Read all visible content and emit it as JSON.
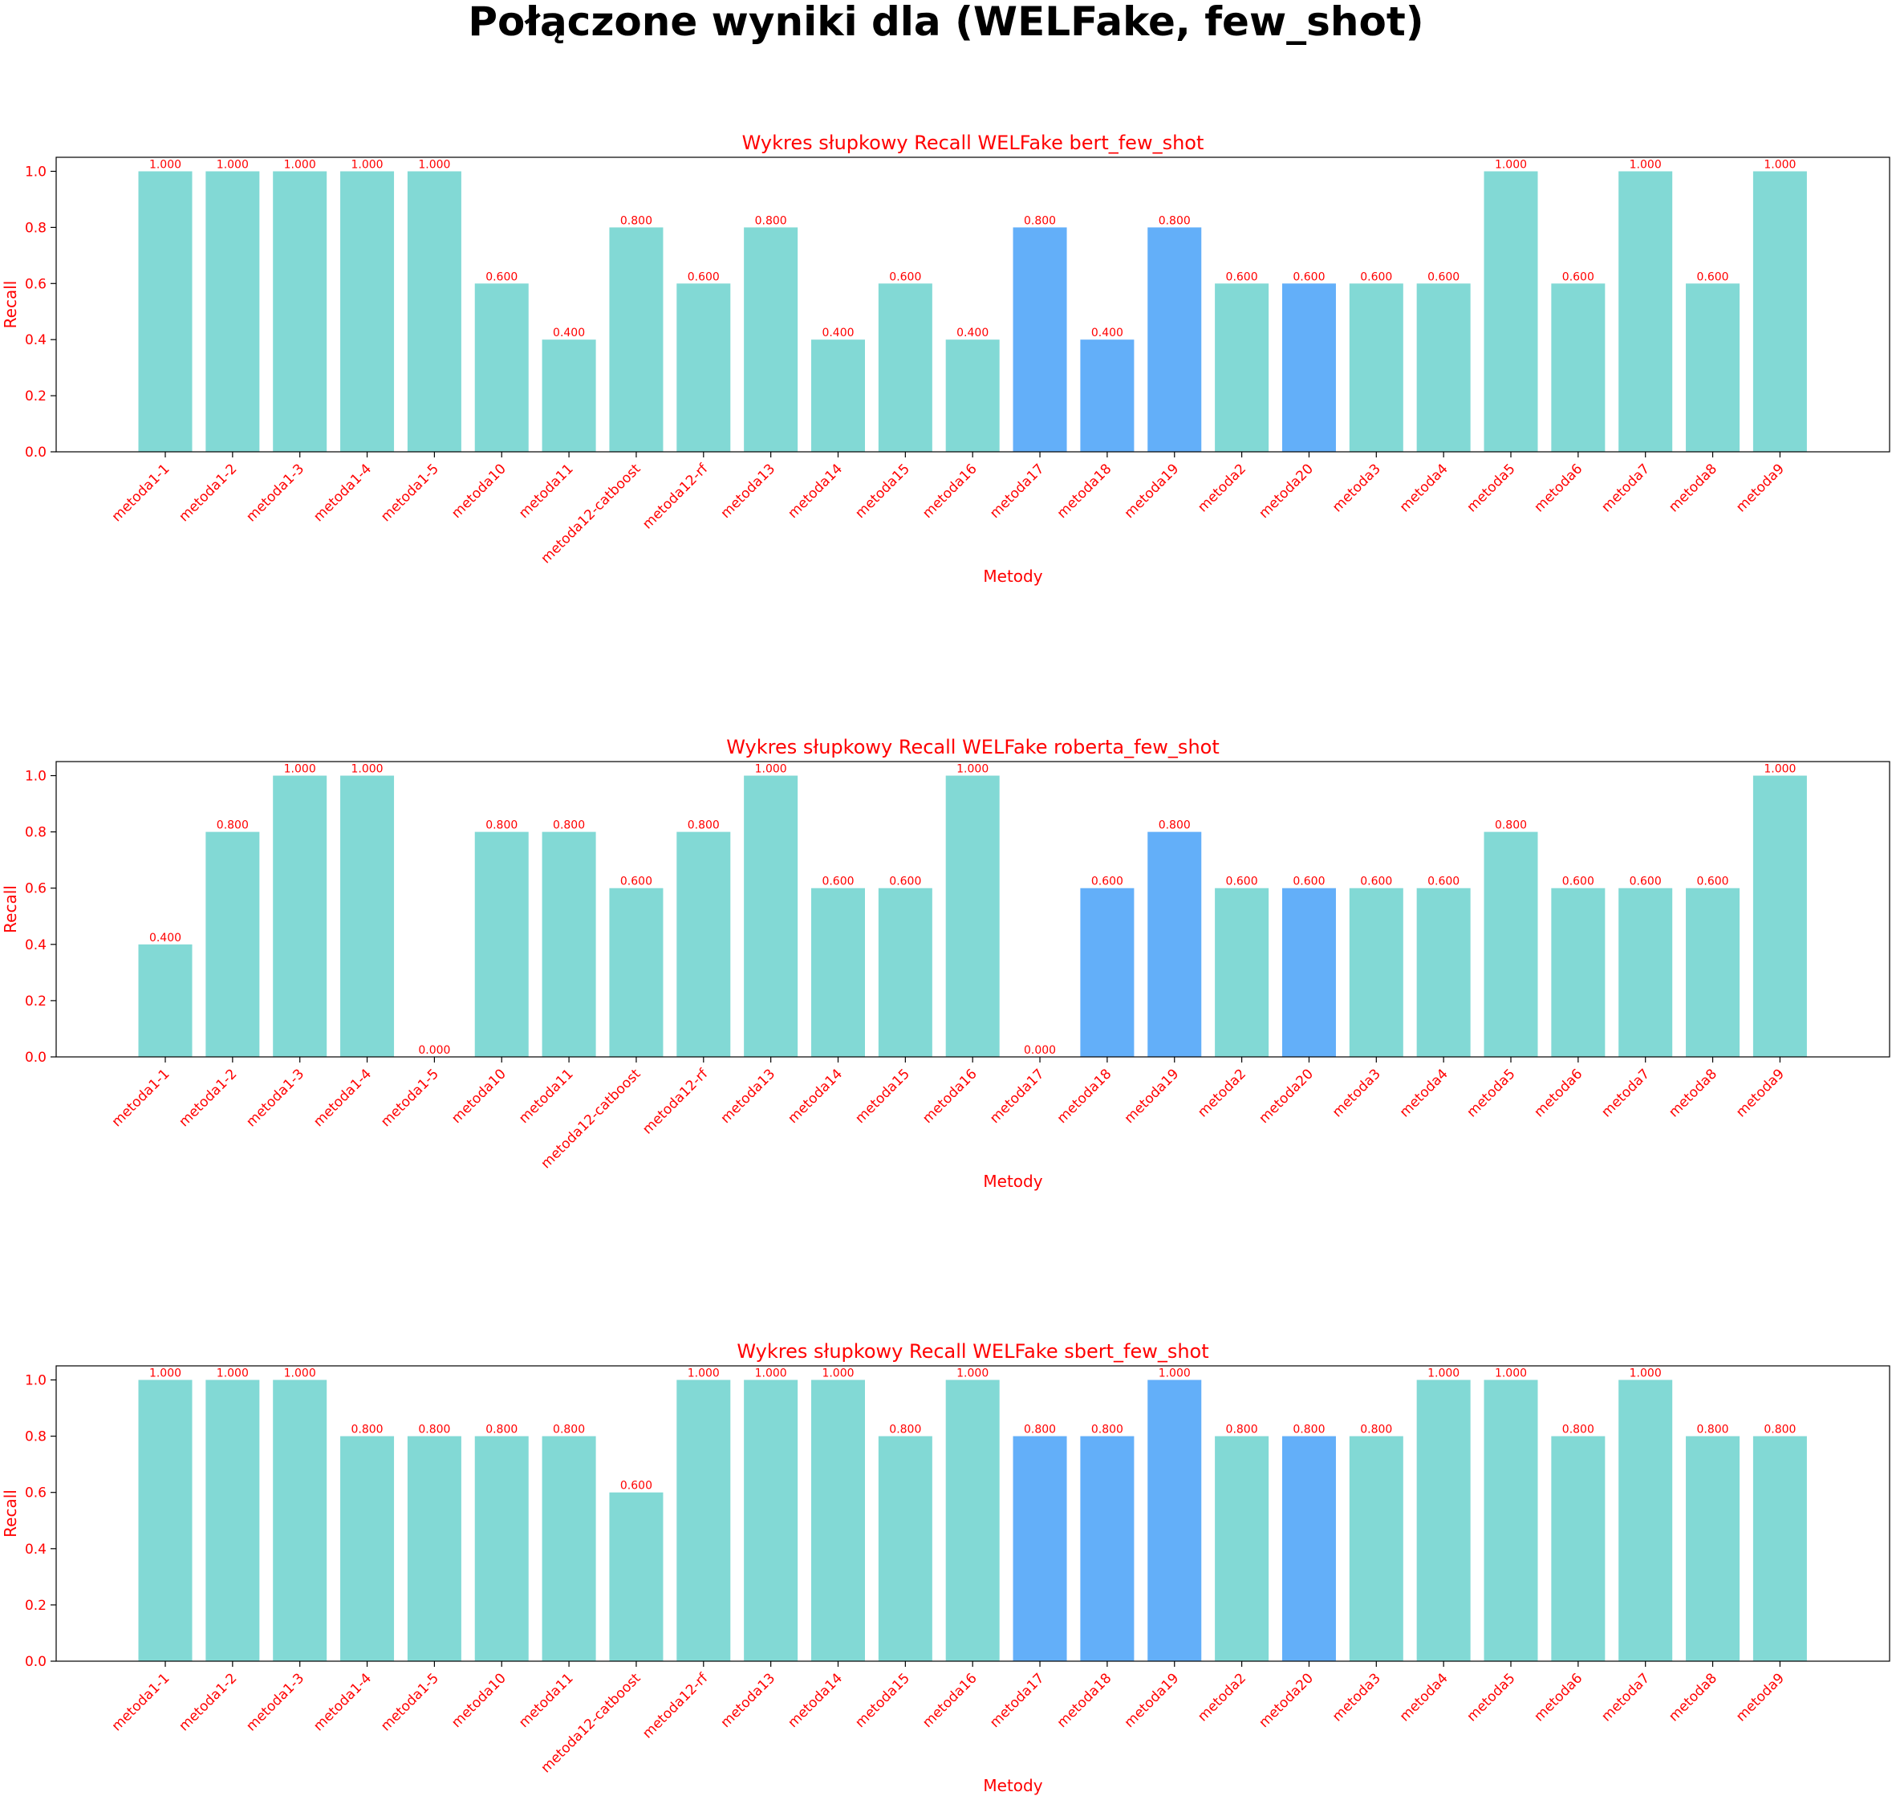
{
  "suptitle": "Połączone wyniki dla (WELFake, few_shot)",
  "colors": {
    "text": "#ff0000",
    "bar_default": "#82d9d5",
    "bar_highlight": "#63aff9",
    "axes": "#000000"
  },
  "chart_data": [
    {
      "type": "bar",
      "title": "Wykres słupkowy Recall WELFake bert_few_shot",
      "xlabel": "Metody",
      "ylabel": "Recall",
      "ylim": [
        0,
        1.05
      ],
      "yticks": [
        "0.0",
        "0.2",
        "0.4",
        "0.6",
        "0.8",
        "1.0"
      ],
      "categories": [
        "metoda1-1",
        "metoda1-2",
        "metoda1-3",
        "metoda1-4",
        "metoda1-5",
        "metoda10",
        "metoda11",
        "metoda12-catboost",
        "metoda12-rf",
        "metoda13",
        "metoda14",
        "metoda15",
        "metoda16",
        "metoda17",
        "metoda18",
        "metoda19",
        "metoda2",
        "metoda20",
        "metoda3",
        "metoda4",
        "metoda5",
        "metoda6",
        "metoda7",
        "metoda8",
        "metoda9"
      ],
      "values": [
        1.0,
        1.0,
        1.0,
        1.0,
        1.0,
        0.6,
        0.4,
        0.8,
        0.6,
        0.8,
        0.4,
        0.6,
        0.4,
        0.8,
        0.4,
        0.8,
        0.6,
        0.6,
        0.6,
        0.6,
        1.0,
        0.6,
        1.0,
        0.6,
        1.0
      ],
      "value_labels": [
        "1.000",
        "1.000",
        "1.000",
        "1.000",
        "1.000",
        "0.600",
        "0.400",
        "0.800",
        "0.600",
        "0.800",
        "0.400",
        "0.600",
        "0.400",
        "0.800",
        "0.400",
        "0.800",
        "0.600",
        "0.600",
        "0.600",
        "0.600",
        "1.000",
        "0.600",
        "1.000",
        "0.600",
        "1.000"
      ],
      "highlighted": [
        "metoda17",
        "metoda18",
        "metoda19",
        "metoda20"
      ],
      "grid": false,
      "legend": "none"
    },
    {
      "type": "bar",
      "title": "Wykres słupkowy Recall WELFake roberta_few_shot",
      "xlabel": "Metody",
      "ylabel": "Recall",
      "ylim": [
        0,
        1.05
      ],
      "yticks": [
        "0.0",
        "0.2",
        "0.4",
        "0.6",
        "0.8",
        "1.0"
      ],
      "categories": [
        "metoda1-1",
        "metoda1-2",
        "metoda1-3",
        "metoda1-4",
        "metoda1-5",
        "metoda10",
        "metoda11",
        "metoda12-catboost",
        "metoda12-rf",
        "metoda13",
        "metoda14",
        "metoda15",
        "metoda16",
        "metoda17",
        "metoda18",
        "metoda19",
        "metoda2",
        "metoda20",
        "metoda3",
        "metoda4",
        "metoda5",
        "metoda6",
        "metoda7",
        "metoda8",
        "metoda9"
      ],
      "values": [
        0.4,
        0.8,
        1.0,
        1.0,
        0.0,
        0.8,
        0.8,
        0.6,
        0.8,
        1.0,
        0.6,
        0.6,
        1.0,
        0.0,
        0.6,
        0.8,
        0.6,
        0.6,
        0.6,
        0.6,
        0.8,
        0.6,
        0.6,
        0.6,
        1.0
      ],
      "value_labels": [
        "0.400",
        "0.800",
        "1.000",
        "1.000",
        "0.000",
        "0.800",
        "0.800",
        "0.600",
        "0.800",
        "1.000",
        "0.600",
        "0.600",
        "1.000",
        "0.000",
        "0.600",
        "0.800",
        "0.600",
        "0.600",
        "0.600",
        "0.600",
        "0.800",
        "0.600",
        "0.600",
        "0.600",
        "1.000"
      ],
      "highlighted": [
        "metoda17",
        "metoda18",
        "metoda19",
        "metoda20"
      ],
      "grid": false,
      "legend": "none"
    },
    {
      "type": "bar",
      "title": "Wykres słupkowy Recall WELFake sbert_few_shot",
      "xlabel": "Metody",
      "ylabel": "Recall",
      "ylim": [
        0,
        1.05
      ],
      "yticks": [
        "0.0",
        "0.2",
        "0.4",
        "0.6",
        "0.8",
        "1.0"
      ],
      "categories": [
        "metoda1-1",
        "metoda1-2",
        "metoda1-3",
        "metoda1-4",
        "metoda1-5",
        "metoda10",
        "metoda11",
        "metoda12-catboost",
        "metoda12-rf",
        "metoda13",
        "metoda14",
        "metoda15",
        "metoda16",
        "metoda17",
        "metoda18",
        "metoda19",
        "metoda2",
        "metoda20",
        "metoda3",
        "metoda4",
        "metoda5",
        "metoda6",
        "metoda7",
        "metoda8",
        "metoda9"
      ],
      "values": [
        1.0,
        1.0,
        1.0,
        0.8,
        0.8,
        0.8,
        0.8,
        0.6,
        1.0,
        1.0,
        1.0,
        0.8,
        1.0,
        0.8,
        0.8,
        1.0,
        0.8,
        0.8,
        0.8,
        1.0,
        1.0,
        0.8,
        1.0,
        0.8,
        0.8
      ],
      "value_labels": [
        "1.000",
        "1.000",
        "1.000",
        "0.800",
        "0.800",
        "0.800",
        "0.800",
        "0.600",
        "1.000",
        "1.000",
        "1.000",
        "0.800",
        "1.000",
        "0.800",
        "0.800",
        "1.000",
        "0.800",
        "0.800",
        "0.800",
        "1.000",
        "1.000",
        "0.800",
        "1.000",
        "0.800",
        "0.800"
      ],
      "highlighted": [
        "metoda17",
        "metoda18",
        "metoda19",
        "metoda20"
      ],
      "grid": false,
      "legend": "none"
    }
  ]
}
